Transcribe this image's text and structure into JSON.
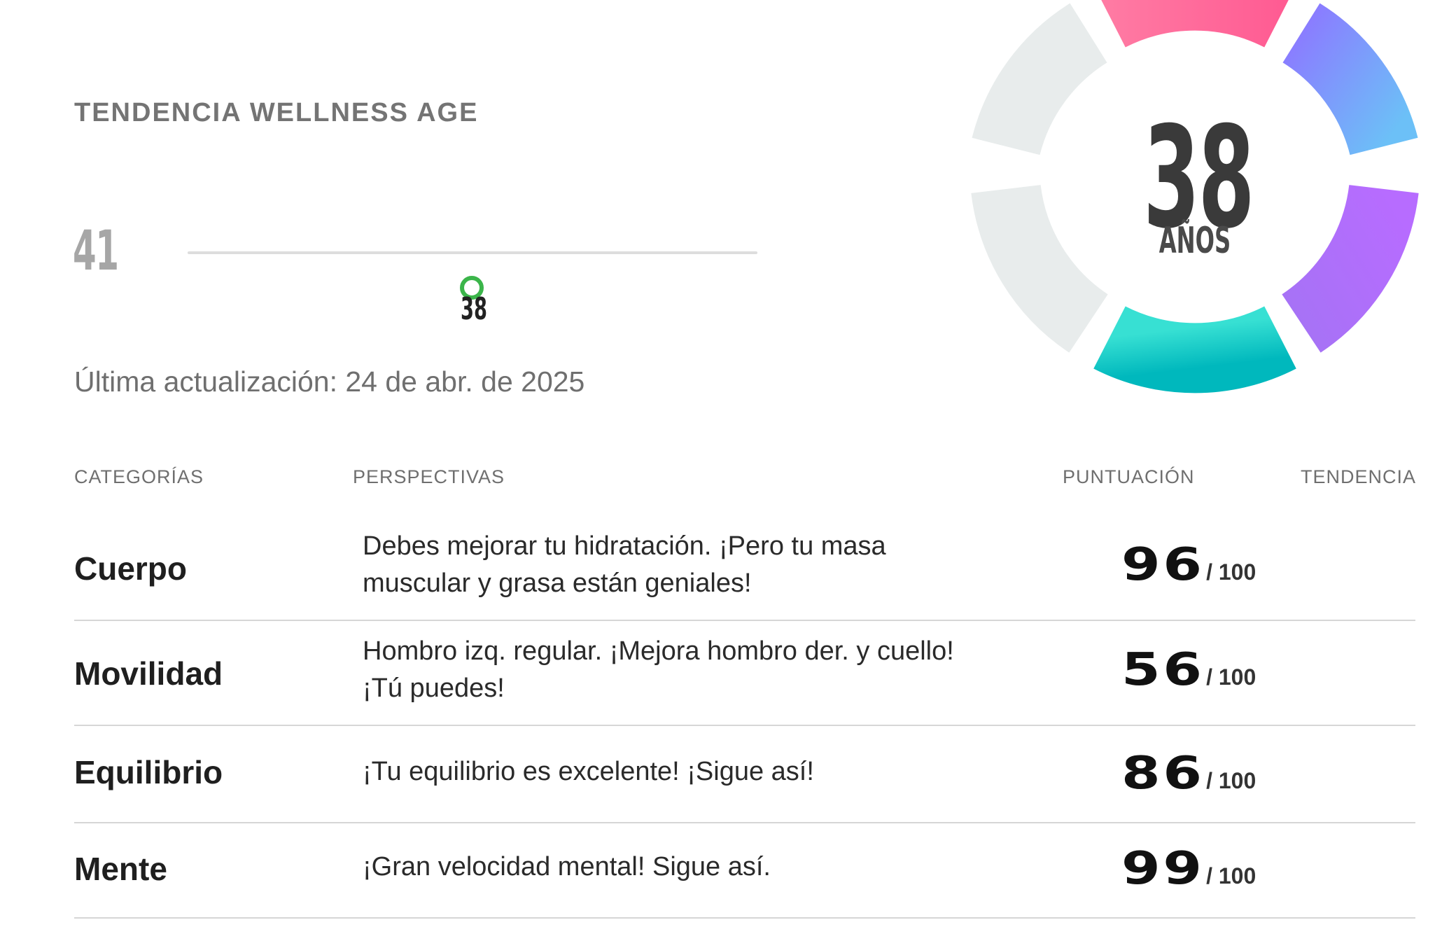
{
  "trend": {
    "title": "TENDENCIA WELLNESS AGE",
    "start_value": "41",
    "current_marker_label": "38",
    "last_update": "Última actualización: 24 de abr. de 2025"
  },
  "wellness_age": {
    "value": "38",
    "unit": "AÑOS",
    "ring_colors": [
      "#ff6f9c",
      "#7f8cff",
      "#b06cff",
      "#1fd1c4",
      "#e8ecec"
    ]
  },
  "table": {
    "headers": {
      "categories": "CATEGORÍAS",
      "insights": "PERSPECTIVAS",
      "score": "PUNTUACIÓN",
      "trend": "TENDENCIA"
    },
    "rows": [
      {
        "category": "Cuerpo",
        "insight": "Debes mejorar tu hidratación. ¡Pero tu masa muscular y grasa están geniales!",
        "score": "96",
        "max": "/ 100"
      },
      {
        "category": "Movilidad",
        "insight": "Hombro izq. regular. ¡Mejora hombro der. y cuello! ¡Tú puedes!",
        "score": "56",
        "max": "/ 100"
      },
      {
        "category": "Equilibrio",
        "insight": "¡Tu equilibrio es excelente! ¡Sigue así!",
        "score": "86",
        "max": "/ 100"
      },
      {
        "category": "Mente",
        "insight": "¡Gran velocidad mental! Sigue así.",
        "score": "99",
        "max": "/ 100"
      }
    ]
  }
}
